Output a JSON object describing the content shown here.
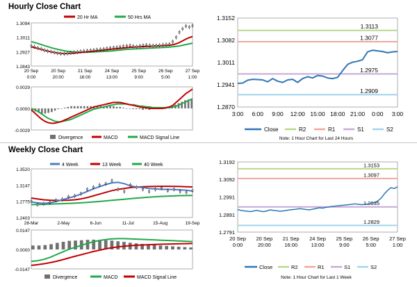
{
  "hourly": {
    "title": "Hourly Close Chart",
    "price": {
      "legend": [
        {
          "label": "20 Hr MA",
          "color": "#c00000"
        },
        {
          "label": "50 Hrs MA",
          "color": "#22a84a"
        }
      ],
      "yticks": [
        "1.3094",
        "1.3011",
        "1.2927",
        "1.2843"
      ],
      "ylim": [
        1.2843,
        1.3094
      ],
      "xticks": [
        {
          "top": "20 Sep",
          "bottom": "0:00"
        },
        {
          "top": "20 Sep",
          "bottom": "20:00"
        },
        {
          "top": "21 Sep",
          "bottom": "16:00"
        },
        {
          "top": "24 Sep",
          "bottom": "13:00"
        },
        {
          "top": "25 Sep",
          "bottom": "9:00"
        },
        {
          "top": "26 Sep",
          "bottom": "5:00"
        },
        {
          "top": "27 Sep",
          "bottom": "1:00"
        }
      ],
      "close": [
        1.296,
        1.2955,
        1.2948,
        1.2942,
        1.2935,
        1.293,
        1.2926,
        1.2922,
        1.2918,
        1.2915,
        1.2914,
        1.2916,
        1.292,
        1.2923,
        1.2925,
        1.2928,
        1.293,
        1.2932,
        1.2934,
        1.2936,
        1.2938,
        1.294,
        1.2942,
        1.2945,
        1.2948,
        1.295,
        1.2952,
        1.2955,
        1.2958,
        1.296,
        1.2962,
        1.2958,
        1.2956,
        1.296,
        1.2963,
        1.2965,
        1.2963,
        1.2961,
        1.2962,
        1.2964,
        1.2966,
        1.2968,
        1.297,
        1.2985,
        1.301,
        1.304,
        1.306,
        1.3075,
        1.307,
        1.3078
      ],
      "ma20": [
        1.2955,
        1.295,
        1.2945,
        1.294,
        1.2935,
        1.293,
        1.2926,
        1.2922,
        1.2919,
        1.2917,
        1.2916,
        1.2916,
        1.2917,
        1.2918,
        1.292,
        1.2922,
        1.2924,
        1.2926,
        1.2928,
        1.293,
        1.2932,
        1.2934,
        1.2936,
        1.2938,
        1.294,
        1.2942,
        1.2944,
        1.2946,
        1.2948,
        1.295,
        1.2952,
        1.2953,
        1.2954,
        1.2955,
        1.2956,
        1.2957,
        1.2958,
        1.2959,
        1.296,
        1.2961,
        1.2962,
        1.2963,
        1.2964,
        1.2967,
        1.2972,
        1.298,
        1.299,
        1.3,
        1.3008,
        1.3015
      ],
      "ma50": [
        1.2985,
        1.298,
        1.2974,
        1.2968,
        1.2962,
        1.2956,
        1.295,
        1.2945,
        1.294,
        1.2936,
        1.2932,
        1.2929,
        1.2927,
        1.2925,
        1.2924,
        1.2923,
        1.2923,
        1.2923,
        1.2924,
        1.2925,
        1.2926,
        1.2927,
        1.2928,
        1.2929,
        1.293,
        1.2932,
        1.2934,
        1.2936,
        1.2938,
        1.294,
        1.2941,
        1.2942,
        1.2943,
        1.2944,
        1.2945,
        1.2946,
        1.2947,
        1.2948,
        1.2949,
        1.295,
        1.2951,
        1.2952,
        1.2953,
        1.2955,
        1.2957,
        1.296,
        1.2964,
        1.2968,
        1.2972,
        1.2976
      ]
    },
    "macd": {
      "legend": [
        {
          "label": "Divergence",
          "color": "#707070"
        },
        {
          "label": "MACD",
          "color": "#c00000"
        },
        {
          "label": "MACD Signal Line",
          "color": "#22a84a"
        }
      ],
      "yticks": [
        "0.0029",
        "0.0000",
        "-0.0029"
      ],
      "ylim": [
        -0.0029,
        0.0029
      ],
      "macd": [
        -0.0002,
        -0.0006,
        -0.001,
        -0.0014,
        -0.0017,
        -0.0019,
        -0.002,
        -0.002,
        -0.0019,
        -0.0018,
        -0.0016,
        -0.0014,
        -0.0012,
        -0.001,
        -0.0008,
        -0.0006,
        -0.0004,
        -0.0002,
        0.0,
        0.0002,
        0.0003,
        0.0004,
        0.0005,
        0.0006,
        0.0007,
        0.0008,
        0.0008,
        0.0008,
        0.0007,
        0.0006,
        0.0005,
        0.0004,
        0.0003,
        0.0002,
        0.0001,
        0.0001,
        0.0,
        0.0,
        0.0,
        0.0,
        0.0,
        0.0001,
        0.0002,
        0.0004,
        0.0008,
        0.0012,
        0.0016,
        0.002,
        0.0023,
        0.0026
      ],
      "signal": [
        0.0,
        -0.0002,
        -0.0004,
        -0.0007,
        -0.001,
        -0.0013,
        -0.0015,
        -0.0017,
        -0.0018,
        -0.0018,
        -0.0017,
        -0.0016,
        -0.0015,
        -0.0013,
        -0.0011,
        -0.0009,
        -0.0007,
        -0.0005,
        -0.0003,
        -0.0001,
        0.0,
        0.0001,
        0.0002,
        0.0003,
        0.0004,
        0.0005,
        0.0006,
        0.0006,
        0.0006,
        0.0006,
        0.0005,
        0.0005,
        0.0004,
        0.0003,
        0.0003,
        0.0002,
        0.0002,
        0.0001,
        0.0001,
        0.0001,
        0.0001,
        0.0001,
        0.0001,
        0.0002,
        0.0003,
        0.0005,
        0.0007,
        0.0009,
        0.0011,
        0.0013
      ],
      "divergence": [
        -0.0002,
        -0.0004,
        -0.0006,
        -0.0007,
        -0.0007,
        -0.0006,
        -0.0005,
        -0.0003,
        -0.0001,
        0.0,
        0.0001,
        0.0002,
        0.0003,
        0.0003,
        0.0003,
        0.0003,
        0.0003,
        0.0003,
        0.0003,
        0.0003,
        0.0003,
        0.0003,
        0.0003,
        0.0003,
        0.0003,
        0.0003,
        0.0002,
        0.0002,
        0.0001,
        0.0,
        0.0,
        -0.0001,
        -0.0001,
        -0.0001,
        -0.0002,
        -0.0001,
        -0.0002,
        -0.0001,
        -0.0001,
        -0.0001,
        -0.0001,
        0.0,
        0.0001,
        0.0002,
        0.0005,
        0.0007,
        0.0009,
        0.0011,
        0.0012,
        0.0013
      ]
    },
    "levels": {
      "yticks": [
        "1.3152",
        "1.3082",
        "1.3011",
        "1.2941",
        "1.2870"
      ],
      "ylim": [
        1.287,
        1.3152
      ],
      "xticks": [
        "3:00",
        "6:00",
        "9:00",
        "12:00",
        "15:00",
        "18:00",
        "21:00",
        "0:00",
        "3:00"
      ],
      "lines": [
        {
          "key": "r2",
          "label": "R2",
          "value": 1.3113,
          "value_label": "1.3113",
          "color": "#b7d98a"
        },
        {
          "key": "r1",
          "label": "R1",
          "value": 1.3077,
          "value_label": "1.3077",
          "color": "#f0a6a0"
        },
        {
          "key": "s1",
          "label": "S1",
          "value": 1.2975,
          "value_label": "1.2975",
          "color": "#c6a8d8"
        },
        {
          "key": "s2",
          "label": "S2",
          "value": 1.2909,
          "value_label": "1.2909",
          "color": "#9fd6ea"
        }
      ],
      "close_label": "Close",
      "close_color": "#2e75b6",
      "close": [
        1.2945,
        1.2946,
        1.2955,
        1.2958,
        1.2957,
        1.2956,
        1.295,
        1.296,
        1.2952,
        1.2948,
        1.2956,
        1.2958,
        1.2948,
        1.296,
        1.2966,
        1.2962,
        1.297,
        1.2968,
        1.2962,
        1.296,
        1.2964,
        1.2985,
        1.3005,
        1.3012,
        1.3015,
        1.302,
        1.3045,
        1.305,
        1.3048,
        1.3046,
        1.3042,
        1.3045,
        1.3046
      ],
      "note": "Note: 1 Hour Chart for Last 24 Hours"
    }
  },
  "weekly": {
    "title": "Weekly Close Chart",
    "price": {
      "legend": [
        {
          "label": "4 Week",
          "color": "#4a7bc8"
        },
        {
          "label": "13 Week",
          "color": "#c00000"
        },
        {
          "label": "40 Week",
          "color": "#22a84a"
        }
      ],
      "yticks": [
        "1.3520",
        "1.3147",
        "1.2775",
        "1.2403"
      ],
      "ylim": [
        1.2403,
        1.352
      ],
      "xticks": [
        "28-Mar",
        "2-May",
        "6-Jun",
        "11-Jul",
        "15-Aug",
        "19-Sep"
      ],
      "close": [
        1.278,
        1.27,
        1.272,
        1.275,
        1.28,
        1.282,
        1.288,
        1.29,
        1.295,
        1.305,
        1.31,
        1.315,
        1.318,
        1.325,
        1.305,
        1.3,
        1.315,
        1.31,
        1.305,
        1.3,
        1.305,
        1.308,
        1.302,
        1.305,
        1.3,
        1.298,
        1.302
      ],
      "wk4": [
        1.276,
        1.274,
        1.2725,
        1.274,
        1.277,
        1.281,
        1.285,
        1.289,
        1.294,
        1.3,
        1.306,
        1.311,
        1.316,
        1.32,
        1.321,
        1.318,
        1.313,
        1.31,
        1.309,
        1.307,
        1.306,
        1.305,
        1.305,
        1.3045,
        1.304,
        1.303,
        1.301
      ],
      "wk13": [
        1.285,
        1.283,
        1.281,
        1.28,
        1.2795,
        1.2795,
        1.28,
        1.281,
        1.283,
        1.286,
        1.29,
        1.294,
        1.298,
        1.302,
        1.305,
        1.307,
        1.309,
        1.31,
        1.311,
        1.3115,
        1.3118,
        1.312,
        1.312,
        1.3118,
        1.3115,
        1.311,
        1.3105
      ],
      "wk40": [
        1.27,
        1.27,
        1.2705,
        1.271,
        1.2715,
        1.272,
        1.2725,
        1.2732,
        1.274,
        1.275,
        1.276,
        1.2772,
        1.2785,
        1.2798,
        1.281,
        1.2822,
        1.2835,
        1.2848,
        1.286,
        1.287,
        1.288,
        1.2888,
        1.2895,
        1.29,
        1.2905,
        1.2908,
        1.291
      ]
    },
    "macd": {
      "legend": [
        {
          "label": "Divergence",
          "color": "#707070"
        },
        {
          "label": "MACD",
          "color": "#22a84a"
        },
        {
          "label": "MACD Signal Line",
          "color": "#c00000"
        }
      ],
      "yticks": [
        "0.0147",
        "0.0000",
        "-0.0147"
      ],
      "ylim": [
        -0.0147,
        0.0147
      ],
      "macd": [
        -0.009,
        -0.0085,
        -0.0075,
        -0.006,
        -0.004,
        -0.002,
        0.0,
        0.0015,
        0.003,
        0.0045,
        0.0058,
        0.0068,
        0.0075,
        0.008,
        0.0082,
        0.0082,
        0.008,
        0.0078,
        0.0076,
        0.0074,
        0.0072,
        0.007,
        0.0068,
        0.0066,
        0.0064,
        0.0062,
        0.006
      ],
      "signal": [
        -0.012,
        -0.0115,
        -0.0108,
        -0.01,
        -0.009,
        -0.0078,
        -0.0065,
        -0.0052,
        -0.004,
        -0.0028,
        -0.0016,
        -0.0005,
        0.0005,
        0.0013,
        0.002,
        0.0025,
        0.0029,
        0.0032,
        0.0034,
        0.0036,
        0.0038,
        0.004,
        0.0041,
        0.0042,
        0.0043,
        0.0044,
        0.0045
      ],
      "divergence": [
        0.003,
        0.003,
        0.0033,
        0.004,
        0.005,
        0.0058,
        0.0065,
        0.0067,
        0.007,
        0.0073,
        0.0074,
        0.0073,
        0.007,
        0.0067,
        0.0062,
        0.0057,
        0.0051,
        0.0046,
        0.0042,
        0.0038,
        0.0034,
        0.003,
        0.0027,
        0.0024,
        0.0021,
        0.0018,
        0.0015
      ]
    },
    "levels": {
      "yticks": [
        "1.3192",
        "1.3092",
        "1.2991",
        "1.2891",
        "1.2791"
      ],
      "ylim": [
        1.2791,
        1.3192
      ],
      "xticks": [
        {
          "top": "20 Sep",
          "bottom": "0:00"
        },
        {
          "top": "20 Sep",
          "bottom": "20:00"
        },
        {
          "top": "21 Sep",
          "bottom": "16:00"
        },
        {
          "top": "24 Sep",
          "bottom": "13:00"
        },
        {
          "top": "25 Sep",
          "bottom": "9:00"
        },
        {
          "top": "26 Sep",
          "bottom": "5:00"
        },
        {
          "top": "27 Sep",
          "bottom": "1:00"
        }
      ],
      "lines": [
        {
          "key": "r2",
          "label": "R2",
          "value": 1.3153,
          "value_label": "1.3153",
          "color": "#b7d98a"
        },
        {
          "key": "r1",
          "label": "R1",
          "value": 1.3097,
          "value_label": "1.3097",
          "color": "#f0a6a0"
        },
        {
          "key": "s1",
          "label": "S1",
          "value": 1.2935,
          "value_label": "1.2935",
          "color": "#c6a8d8"
        },
        {
          "key": "s2",
          "label": "S2",
          "value": 1.2829,
          "value_label": "1.2829",
          "color": "#9fd6ea"
        }
      ],
      "close_label": "Close",
      "close_color": "#2e75b6",
      "close": [
        1.292,
        1.2915,
        1.2912,
        1.291,
        1.2908,
        1.2912,
        1.2915,
        1.291,
        1.2908,
        1.2912,
        1.2918,
        1.2915,
        1.2913,
        1.291,
        1.2912,
        1.2915,
        1.2918,
        1.292,
        1.2922,
        1.2925,
        1.2923,
        1.292,
        1.2918,
        1.2922,
        1.2926,
        1.293,
        1.2928,
        1.2932,
        1.2935,
        1.2938,
        1.294,
        1.2942,
        1.2944,
        1.2946,
        1.2948,
        1.295,
        1.2952,
        1.295,
        1.2948,
        1.295,
        1.2952,
        1.2955,
        1.296,
        1.297,
        1.2985,
        1.301,
        1.303,
        1.3045,
        1.304,
        1.305
      ],
      "note": "Note: 1 Hour Chart for Last 1 Week"
    }
  }
}
